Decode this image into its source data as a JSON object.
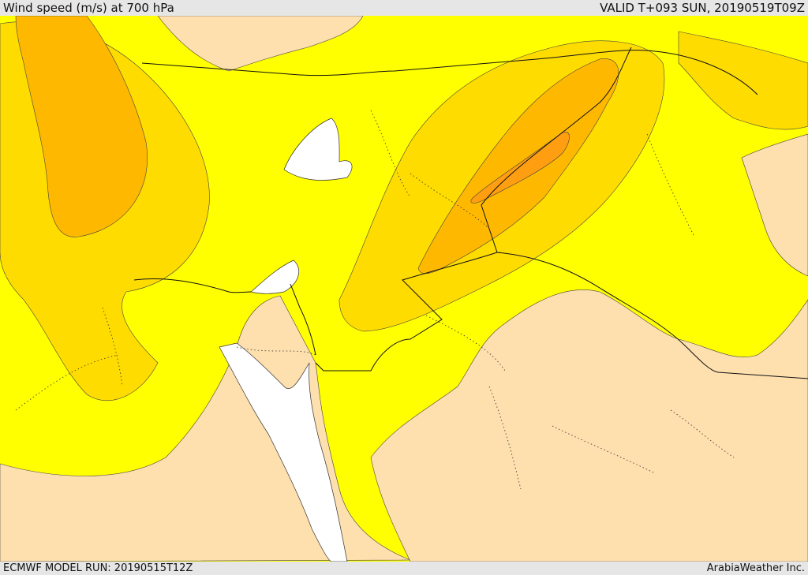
{
  "header": {
    "title": "Wind speed (m/s) at 700 hPa",
    "valid_time": "VALID T+093 SUN, 20190519T09Z"
  },
  "footer": {
    "model_run": "ECMWF MODEL RUN: 20190515T12Z",
    "credit": "ArabiaWeather Inc."
  },
  "colors": {
    "sea": "#ffffff",
    "band_low": "#fedfae",
    "band_mid": "#ffff00",
    "band_high1": "#ffdc00",
    "band_high2": "#ffb800",
    "band_high3": "#ff9e10",
    "boundary": "#111111"
  }
}
